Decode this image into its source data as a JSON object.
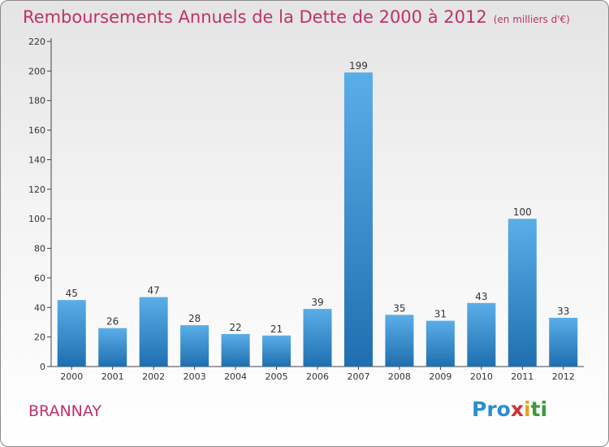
{
  "header": {
    "title": "Remboursements Annuels de la Dette de 2000 à 2012",
    "unit": "(en milliers d'€)"
  },
  "footer": {
    "city": "BRANNAY",
    "brand": "Proxiti"
  },
  "colors": {
    "title": "#c0306a",
    "bar_top": "#5aaee8",
    "bar_bottom": "#1f6fb0",
    "axis": "#444444"
  },
  "chart_data": {
    "type": "bar",
    "categories": [
      "2000",
      "2001",
      "2002",
      "2003",
      "2004",
      "2005",
      "2006",
      "2007",
      "2008",
      "2009",
      "2010",
      "2011",
      "2012"
    ],
    "values": [
      45,
      26,
      47,
      28,
      22,
      21,
      39,
      199,
      35,
      31,
      43,
      100,
      33
    ],
    "ylim": [
      0,
      220
    ],
    "yticks": [
      0,
      20,
      40,
      60,
      80,
      100,
      120,
      140,
      160,
      180,
      200,
      220
    ],
    "grid": false,
    "data_labels": true
  }
}
